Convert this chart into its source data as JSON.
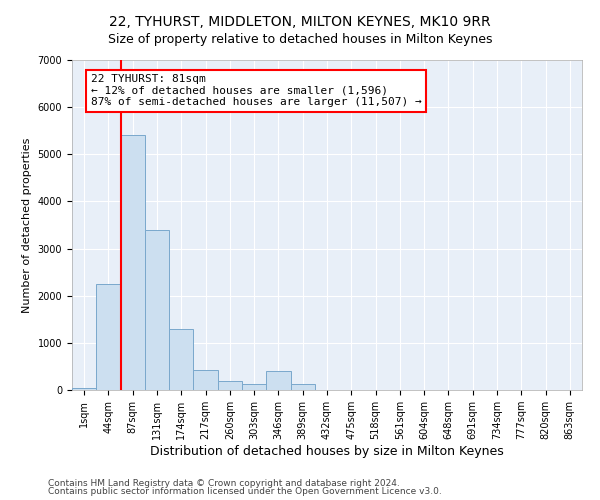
{
  "title": "22, TYHURST, MIDDLETON, MILTON KEYNES, MK10 9RR",
  "subtitle": "Size of property relative to detached houses in Milton Keynes",
  "xlabel": "Distribution of detached houses by size in Milton Keynes",
  "ylabel": "Number of detached properties",
  "footnote1": "Contains HM Land Registry data © Crown copyright and database right 2024.",
  "footnote2": "Contains public sector information licensed under the Open Government Licence v3.0.",
  "bar_labels": [
    "1sqm",
    "44sqm",
    "87sqm",
    "131sqm",
    "174sqm",
    "217sqm",
    "260sqm",
    "303sqm",
    "346sqm",
    "389sqm",
    "432sqm",
    "475sqm",
    "518sqm",
    "561sqm",
    "604sqm",
    "648sqm",
    "691sqm",
    "734sqm",
    "777sqm",
    "820sqm",
    "863sqm"
  ],
  "bar_values": [
    50,
    2250,
    5400,
    3400,
    1300,
    420,
    200,
    130,
    400,
    130,
    5,
    5,
    3,
    2,
    2,
    1,
    1,
    0,
    0,
    0,
    0
  ],
  "bar_color": "#ccdff0",
  "bar_edge_color": "#7aa8cc",
  "vline_color": "red",
  "vline_x": 1.5,
  "annotation_line1": "22 TYHURST: 81sqm",
  "annotation_line2": "← 12% of detached houses are smaller (1,596)",
  "annotation_line3": "87% of semi-detached houses are larger (11,507) →",
  "annotation_box_facecolor": "white",
  "annotation_box_edgecolor": "red",
  "ylim_max": 7000,
  "yticks": [
    0,
    1000,
    2000,
    3000,
    4000,
    5000,
    6000,
    7000
  ],
  "bg_color": "#e8eff8",
  "grid_color": "#ffffff",
  "title_fontsize": 10,
  "subtitle_fontsize": 9,
  "ylabel_fontsize": 8,
  "xlabel_fontsize": 9,
  "tick_fontsize": 7,
  "footnote_fontsize": 6.5,
  "ann_fontsize": 8
}
